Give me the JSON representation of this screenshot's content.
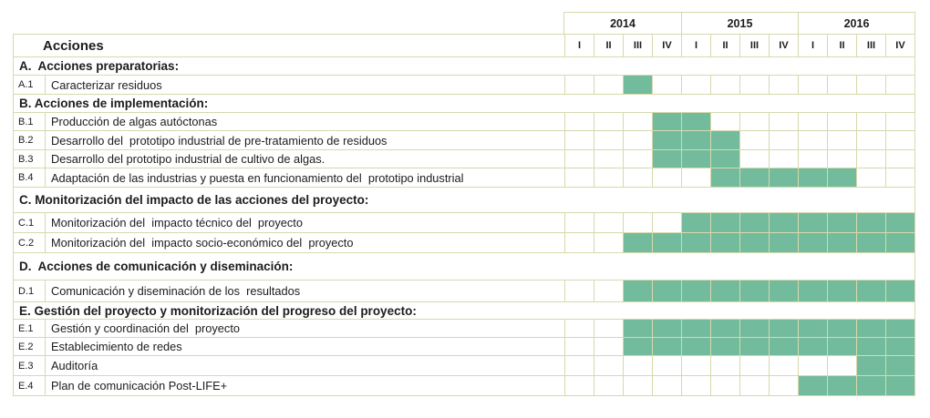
{
  "palette": {
    "bar_fill": "#73BB9D",
    "grid_line": "#D7D9AC",
    "text": "#1C1C1C",
    "background": "#FFFFFF"
  },
  "chart_data": {
    "type": "gantt",
    "title": "Acciones",
    "years": [
      "2014",
      "2015",
      "2016"
    ],
    "quarter_labels": [
      "I",
      "II",
      "III",
      "IV",
      "I",
      "II",
      "III",
      "IV",
      "I",
      "II",
      "III",
      "IV"
    ],
    "columns": [
      "2014 I",
      "2014 II",
      "2014 III",
      "2014 IV",
      "2015 I",
      "2015 II",
      "2015 III",
      "2015 IV",
      "2016 I",
      "2016 II",
      "2016 III",
      "2016 IV"
    ],
    "rows": [
      {
        "kind": "section",
        "label": "A.  Acciones preparatorias:"
      },
      {
        "kind": "task",
        "code": "A.1",
        "label": "Caracterizar residuos",
        "filled_quarters": [
          3
        ]
      },
      {
        "kind": "section",
        "label": "B. Acciones de implementación:"
      },
      {
        "kind": "task",
        "code": "B.1",
        "label": "Producción de algas autóctonas",
        "filled_quarters": [
          4,
          5
        ]
      },
      {
        "kind": "task",
        "code": "B.2",
        "label": "Desarrollo del  prototipo industrial de pre-tratamiento de residuos",
        "filled_quarters": [
          4,
          5,
          6
        ]
      },
      {
        "kind": "task",
        "code": "B.3",
        "label": "Desarrollo del prototipo industrial de cultivo de algas.",
        "filled_quarters": [
          4,
          5,
          6
        ]
      },
      {
        "kind": "task",
        "code": "B.4",
        "label": "Adaptación de las industrias y puesta en funcionamiento del  prototipo industrial",
        "filled_quarters": [
          6,
          7,
          8,
          9,
          10
        ]
      },
      {
        "kind": "section",
        "label": "C. Monitorización del impacto de las acciones del proyecto:"
      },
      {
        "kind": "task",
        "code": "C.1",
        "label": "Monitorización del  impacto técnico del  proyecto",
        "filled_quarters": [
          5,
          6,
          7,
          8,
          9,
          10,
          11,
          12
        ]
      },
      {
        "kind": "task",
        "code": "C.2",
        "label": "Monitorización del  impacto socio-económico del  proyecto",
        "filled_quarters": [
          3,
          4,
          5,
          6,
          7,
          8,
          9,
          10,
          11,
          12
        ]
      },
      {
        "kind": "section",
        "label": "D.  Acciones de comunicación y diseminación:"
      },
      {
        "kind": "task",
        "code": "D.1",
        "label": "Comunicación y diseminación de los  resultados",
        "filled_quarters": [
          3,
          4,
          5,
          6,
          7,
          8,
          9,
          10,
          11,
          12
        ]
      },
      {
        "kind": "section",
        "label": "E. Gestión del proyecto y monitorización del progreso del proyecto:"
      },
      {
        "kind": "task",
        "code": "E.1",
        "label": "Gestión y coordinación del  proyecto",
        "filled_quarters": [
          3,
          4,
          5,
          6,
          7,
          8,
          9,
          10,
          11,
          12
        ]
      },
      {
        "kind": "task",
        "code": "E.2",
        "label": "Establecimiento de redes",
        "filled_quarters": [
          3,
          4,
          5,
          6,
          7,
          8,
          9,
          10,
          11,
          12
        ]
      },
      {
        "kind": "task",
        "code": "E.3",
        "label": "Auditoría",
        "filled_quarters": [
          11,
          12
        ]
      },
      {
        "kind": "task",
        "code": "E.4",
        "label": "Plan de comunicación Post-LIFE+",
        "filled_quarters": [
          9,
          10,
          11,
          12
        ]
      }
    ]
  }
}
